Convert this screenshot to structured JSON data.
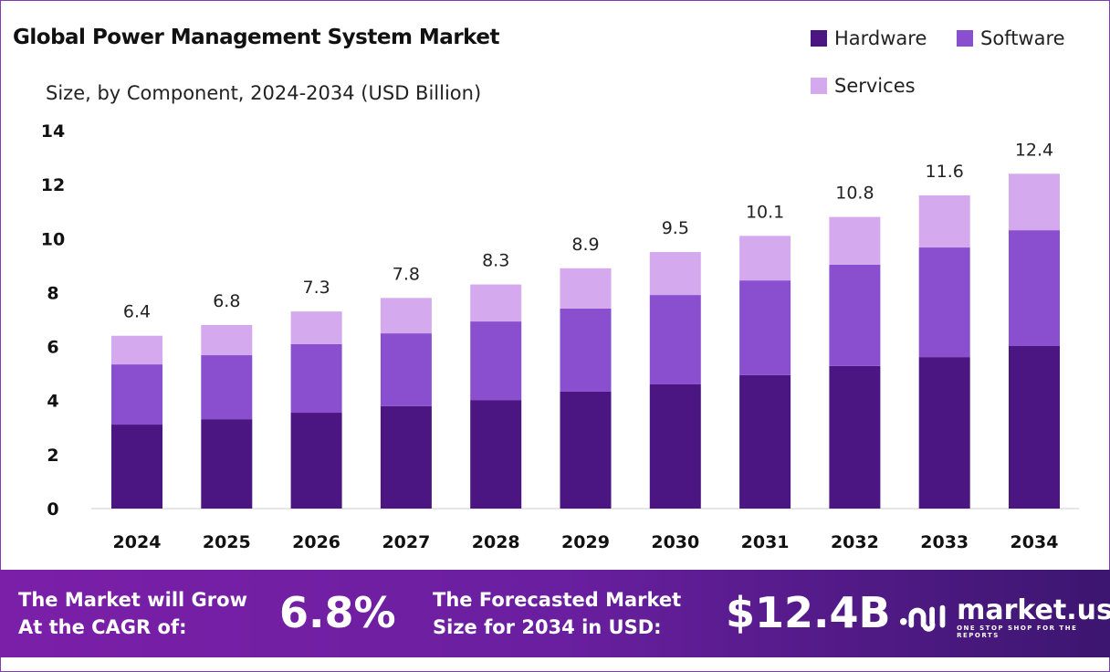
{
  "chart_data": {
    "type": "bar",
    "stacked": true,
    "title": "Global Power Management System Market",
    "subtitle": "Size, by Component, 2024-2034 (USD Billion)",
    "xlabel": "",
    "ylabel": "",
    "ylim": [
      0,
      14
    ],
    "yticks": [
      "0",
      "2",
      "4",
      "6",
      "8",
      "10",
      "12",
      "14"
    ],
    "categories": [
      "2024",
      "2025",
      "2026",
      "2027",
      "2028",
      "2029",
      "2030",
      "2031",
      "2032",
      "2033",
      "2034"
    ],
    "series": [
      {
        "name": "Hardware",
        "color": "#4b1682",
        "values": [
          3.11,
          3.31,
          3.55,
          3.79,
          4.02,
          4.33,
          4.6,
          4.94,
          5.28,
          5.61,
          6.02
        ]
      },
      {
        "name": "Software",
        "color": "#8a4fcf",
        "values": [
          2.23,
          2.37,
          2.54,
          2.7,
          2.91,
          3.08,
          3.31,
          3.51,
          3.75,
          4.06,
          4.29
        ]
      },
      {
        "name": "Services",
        "color": "#d4a9ee",
        "values": [
          1.06,
          1.12,
          1.21,
          1.31,
          1.37,
          1.49,
          1.59,
          1.65,
          1.77,
          1.93,
          2.09
        ]
      }
    ],
    "totals": [
      "6.4",
      "6.8",
      "7.3",
      "7.8",
      "8.3",
      "8.9",
      "9.5",
      "10.1",
      "10.8",
      "11.6",
      "12.4"
    ],
    "legend": "top-right",
    "grid": false
  },
  "footer": {
    "cagr_label_1": "The Market will Grow",
    "cagr_label_2": "At the CAGR of:",
    "cagr_value": "6.8%",
    "forecast_label_1": "The Forecasted Market",
    "forecast_label_2": "Size for 2034 in USD:",
    "forecast_value": "$12.4B",
    "logo_name": "market.us",
    "logo_tagline": "ONE STOP SHOP FOR THE REPORTS"
  }
}
